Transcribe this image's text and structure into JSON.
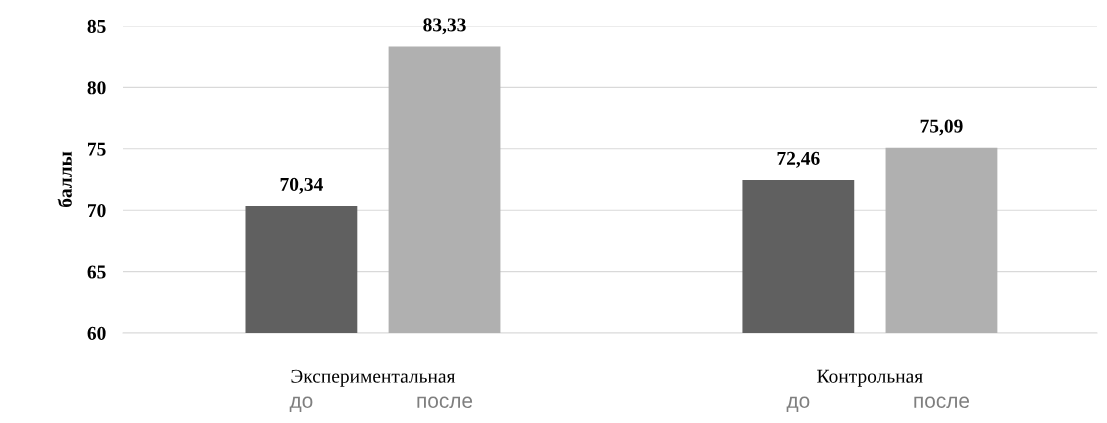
{
  "chart_data": {
    "type": "bar",
    "ylabel": "баллы",
    "categories": [
      "Экспериментальная",
      "Контрольная"
    ],
    "series": [
      {
        "name": "до",
        "color": "#606060",
        "values": [
          70.34,
          72.46
        ],
        "value_labels": [
          "70,34",
          "72,46"
        ]
      },
      {
        "name": "после",
        "color": "#b0b0b0",
        "values": [
          83.33,
          75.09
        ],
        "value_labels": [
          "83,33",
          "75,09"
        ]
      }
    ],
    "ylim": [
      60,
      85
    ],
    "yticks": [
      60,
      65,
      70,
      75,
      80,
      85
    ],
    "grid": "y",
    "legend": false
  }
}
